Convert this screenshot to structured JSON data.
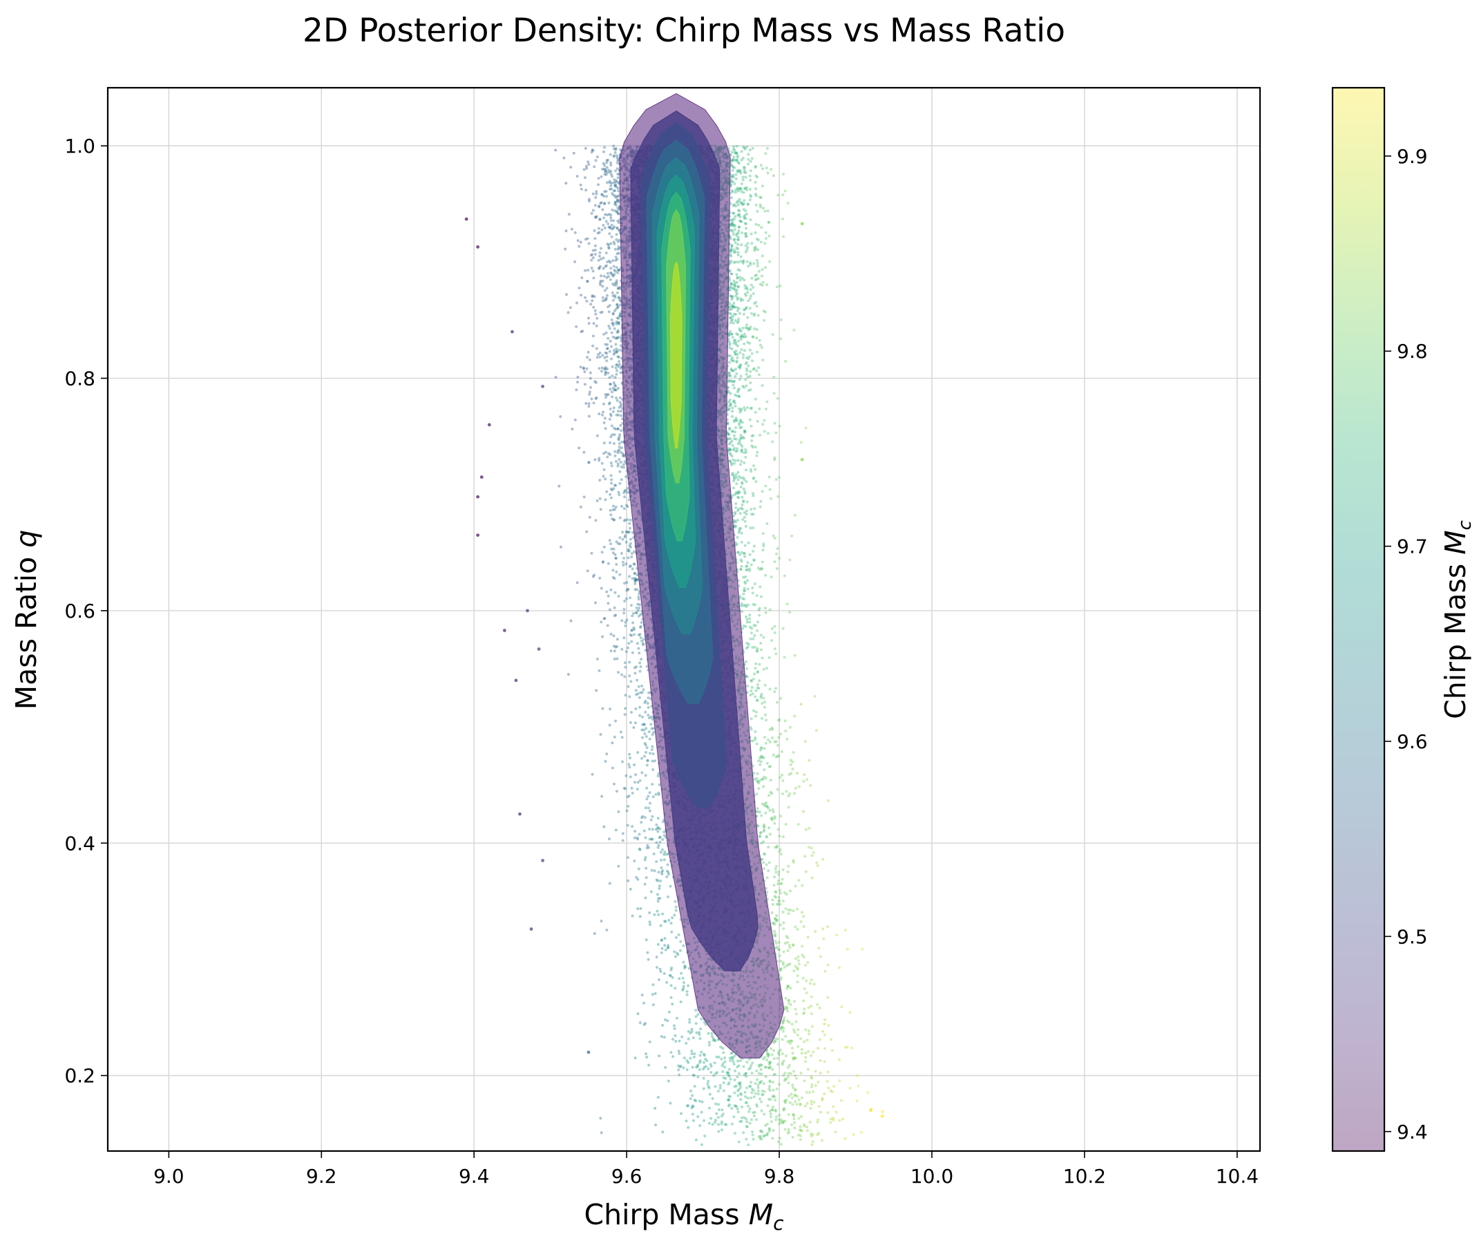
{
  "chart_data": {
    "type": "scatter",
    "title": "2D Posterior Density: Chirp Mass vs Mass Ratio",
    "xlabel": "Chirp Mass ",
    "xlabel_symbol": "M",
    "xlabel_subscript": "c",
    "ylabel": "Mass Ratio ",
    "ylabel_symbol": "q",
    "xlim": [
      8.92,
      10.43
    ],
    "ylim": [
      0.135,
      1.05
    ],
    "xticks": [
      9.0,
      9.2,
      9.4,
      9.6,
      9.8,
      10.0,
      10.2,
      10.4
    ],
    "xtick_labels": [
      "9.0",
      "9.2",
      "9.4",
      "9.6",
      "9.8",
      "10.0",
      "10.2",
      "10.4"
    ],
    "yticks": [
      0.2,
      0.4,
      0.6,
      0.8,
      1.0
    ],
    "ytick_labels": [
      "0.2",
      "0.4",
      "0.6",
      "0.8",
      "1.0"
    ],
    "grid": true,
    "colorbar": {
      "label": "Chirp Mass ",
      "label_symbol": "M",
      "label_subscript": "c",
      "range": [
        9.39,
        9.935
      ],
      "ticks": [
        9.4,
        9.5,
        9.6,
        9.7,
        9.8,
        9.9
      ],
      "tick_labels": [
        "9.4",
        "9.5",
        "9.6",
        "9.7",
        "9.8",
        "9.9"
      ],
      "colormap": "viridis",
      "alpha": 0.35
    },
    "scatter": {
      "n_points": 18000,
      "color_by": "chirp mass",
      "alpha": 0.4,
      "outliers": [
        [
          9.39,
          0.937
        ],
        [
          9.405,
          0.913
        ],
        [
          9.41,
          0.715
        ],
        [
          9.405,
          0.698
        ],
        [
          9.405,
          0.665
        ],
        [
          9.42,
          0.76
        ],
        [
          9.45,
          0.84
        ],
        [
          9.44,
          0.583
        ],
        [
          9.455,
          0.54
        ],
        [
          9.47,
          0.6
        ],
        [
          9.485,
          0.567
        ],
        [
          9.46,
          0.425
        ],
        [
          9.475,
          0.326
        ],
        [
          9.49,
          0.385
        ],
        [
          9.49,
          0.793
        ],
        [
          9.83,
          0.933
        ],
        [
          9.83,
          0.73
        ],
        [
          9.92,
          0.17
        ],
        [
          9.935,
          0.165
        ],
        [
          9.55,
          0.22
        ]
      ]
    },
    "density": {
      "type": "kde_filled_contours",
      "peak": [
        9.665,
        0.82
      ],
      "level_colors": [
        "#6b3d8c",
        "#443a83",
        "#3c4f8a",
        "#306a8e",
        "#27808e",
        "#1f9a8a",
        "#35b779",
        "#6ece58",
        "#b5de2b"
      ],
      "level_alpha": 0.8
    },
    "colors": {
      "viridis": [
        "#440154",
        "#482878",
        "#3e4989",
        "#31688e",
        "#26828e",
        "#1f9e89",
        "#35b779",
        "#6ece58",
        "#b5de2b",
        "#fde725"
      ]
    }
  }
}
